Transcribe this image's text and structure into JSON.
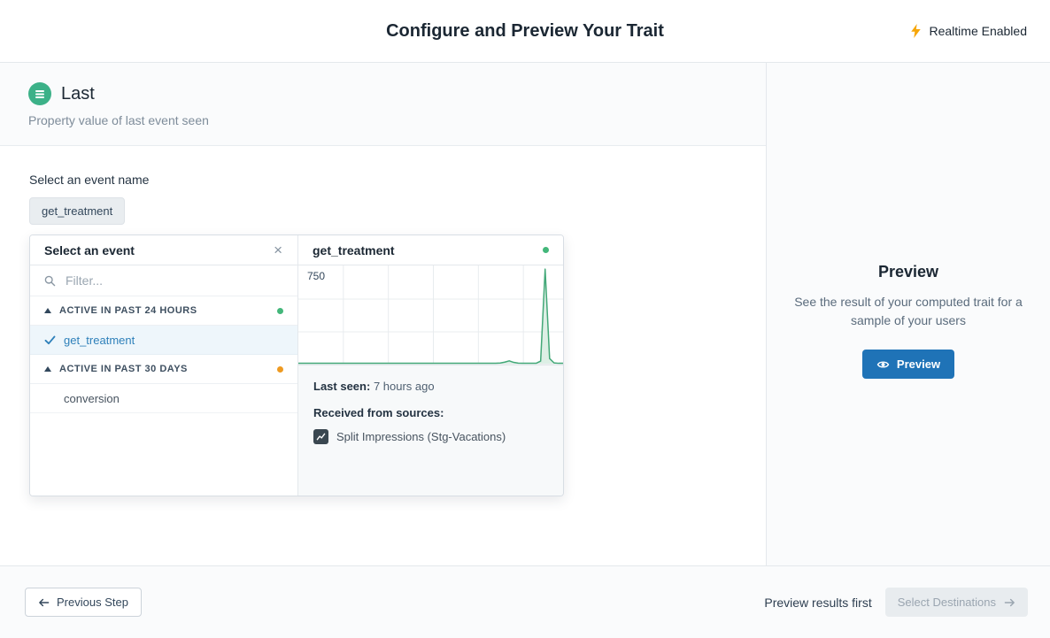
{
  "header": {
    "title": "Configure and Preview Your Trait",
    "realtime_label": "Realtime Enabled",
    "realtime_icon_color": "#f6a609"
  },
  "trait": {
    "name": "Last",
    "description": "Property value of last event seen",
    "icon_color": "#3cb188"
  },
  "icons": {
    "close": "×"
  },
  "event_select": {
    "label": "Select an event name",
    "selected_chip": "get_treatment",
    "dropdown": {
      "title": "Select an event",
      "filter_placeholder": "Filter...",
      "groups": [
        {
          "label": "ACTIVE IN PAST 24 HOURS",
          "dot_color": "#43b77a",
          "items": [
            {
              "label": "get_treatment",
              "selected": true
            }
          ]
        },
        {
          "label": "ACTIVE IN PAST 30 DAYS",
          "dot_color": "#ee9a21",
          "items": [
            {
              "label": "conversion",
              "selected": false
            }
          ]
        }
      ]
    },
    "detail": {
      "title": "get_treatment",
      "status_dot_color": "#43b77a",
      "last_seen_label": "Last seen:",
      "last_seen_value": "7 hours ago",
      "sources_label": "Received from sources:",
      "source_name": "Split Impressions (Stg-Vacations)"
    }
  },
  "chart_data": {
    "type": "area",
    "title": "get_treatment event activity",
    "ytick": "750",
    "ymax": 750,
    "grid": true,
    "line_color": "#43a878",
    "fill_color": "#ddefe5",
    "values": [
      3,
      3,
      3,
      3,
      3,
      3,
      3,
      3,
      3,
      3,
      3,
      3,
      3,
      3,
      3,
      3,
      3,
      3,
      3,
      3,
      3,
      3,
      3,
      3,
      3,
      3,
      3,
      3,
      3,
      3,
      3,
      3,
      3,
      3,
      3,
      3,
      3,
      3,
      3,
      3,
      3,
      3,
      3,
      3,
      3,
      5,
      12,
      22,
      10,
      4,
      3,
      3,
      3,
      3,
      20,
      735,
      40,
      6,
      3,
      3
    ]
  },
  "preview_panel": {
    "title": "Preview",
    "description": "See the result of your computed trait for a sample of your users",
    "button_label": "Preview",
    "button_color": "#1f73b7"
  },
  "footer": {
    "previous_label": "Previous Step",
    "hint": "Preview results first",
    "next_label": "Select Destinations"
  }
}
